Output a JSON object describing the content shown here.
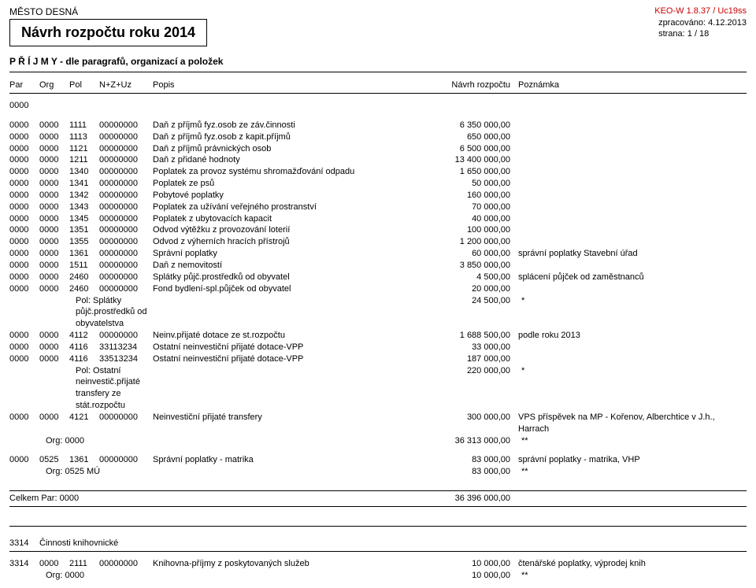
{
  "header": {
    "mesto": "MĚSTO DESNÁ",
    "keo": "KEO-W 1.8.37 / Uc19ss",
    "title": "Návrh rozpočtu roku 2014",
    "zprac_label": "zpracováno:",
    "zprac_value": "4.12.2013",
    "strana_label": "strana:",
    "strana_value": "1 / 18",
    "section": "P Ř Í J M Y - dle paragrafů, organizací a položek"
  },
  "cols": {
    "par": "Par",
    "org": "Org",
    "pol": "Pol",
    "nz": "N+Z+Uz",
    "popis": "Popis",
    "navrh": "Návrh rozpočtu",
    "pozn": "Poznámka"
  },
  "group0_code": "0000",
  "rows": [
    {
      "par": "0000",
      "org": "0000",
      "pol": "1111",
      "nz": "00000000",
      "popis": "Daň z příjmů fyz.osob ze záv.činnosti",
      "navrh": "6 350 000,00",
      "pozn": ""
    },
    {
      "par": "0000",
      "org": "0000",
      "pol": "1113",
      "nz": "00000000",
      "popis": "Daň z příjmů fyz.osob z kapit.příjmů",
      "navrh": "650 000,00",
      "pozn": ""
    },
    {
      "par": "0000",
      "org": "0000",
      "pol": "1121",
      "nz": "00000000",
      "popis": "Daň z příjmů právnických osob",
      "navrh": "6 500 000,00",
      "pozn": ""
    },
    {
      "par": "0000",
      "org": "0000",
      "pol": "1211",
      "nz": "00000000",
      "popis": "Daň z přidané hodnoty",
      "navrh": "13 400 000,00",
      "pozn": ""
    },
    {
      "par": "0000",
      "org": "0000",
      "pol": "1340",
      "nz": "00000000",
      "popis": "Poplatek za provoz systému shromažďování odpadu",
      "navrh": "1 650 000,00",
      "pozn": ""
    },
    {
      "par": "0000",
      "org": "0000",
      "pol": "1341",
      "nz": "00000000",
      "popis": "Poplatek ze psů",
      "navrh": "50 000,00",
      "pozn": ""
    },
    {
      "par": "0000",
      "org": "0000",
      "pol": "1342",
      "nz": "00000000",
      "popis": "Pobytové poplatky",
      "navrh": "160 000,00",
      "pozn": ""
    },
    {
      "par": "0000",
      "org": "0000",
      "pol": "1343",
      "nz": "00000000",
      "popis": "Poplatek za užívání veřejného prostranství",
      "navrh": "70 000,00",
      "pozn": ""
    },
    {
      "par": "0000",
      "org": "0000",
      "pol": "1345",
      "nz": "00000000",
      "popis": "Poplatek z ubytovacích kapacit",
      "navrh": "40 000,00",
      "pozn": ""
    },
    {
      "par": "0000",
      "org": "0000",
      "pol": "1351",
      "nz": "00000000",
      "popis": "Odvod výtěžku z provozování loterií",
      "navrh": "100 000,00",
      "pozn": ""
    },
    {
      "par": "0000",
      "org": "0000",
      "pol": "1355",
      "nz": "00000000",
      "popis": "Odvod z výherních hracích přístrojů",
      "navrh": "1 200 000,00",
      "pozn": ""
    },
    {
      "par": "0000",
      "org": "0000",
      "pol": "1361",
      "nz": "00000000",
      "popis": "Správní poplatky",
      "navrh": "60 000,00",
      "pozn": "správní poplatky Stavební úřad"
    },
    {
      "par": "0000",
      "org": "0000",
      "pol": "1511",
      "nz": "00000000",
      "popis": "Daň z nemovitostí",
      "navrh": "3 850 000,00",
      "pozn": ""
    },
    {
      "par": "0000",
      "org": "0000",
      "pol": "2460",
      "nz": "00000000",
      "popis": "Splátky půjč.prostředků od obyvatel",
      "navrh": "4 500,00",
      "pozn": "splácení půjček od zaměstnanců"
    },
    {
      "par": "0000",
      "org": "0000",
      "pol": "2460",
      "nz": "00000000",
      "popis": "Fond bydlení-spl.půjček od obyvatel",
      "navrh": "20 000,00",
      "pozn": ""
    }
  ],
  "subtotal_pol1": {
    "label": "Pol:",
    "popis": "Splátky půjč.prostředků od obyvatelstva",
    "navrh": "24 500,00",
    "star": "*"
  },
  "rows2": [
    {
      "par": "0000",
      "org": "0000",
      "pol": "4112",
      "nz": "00000000",
      "popis": "Neinv.přijaté dotace ze st.rozpočtu",
      "navrh": "1 688 500,00",
      "pozn": "podle roku 2013"
    },
    {
      "par": "0000",
      "org": "0000",
      "pol": "4116",
      "nz": "33113234",
      "popis": "Ostatní neinvestiční přijaté dotace-VPP",
      "navrh": "33 000,00",
      "pozn": ""
    },
    {
      "par": "0000",
      "org": "0000",
      "pol": "4116",
      "nz": "33513234",
      "popis": "Ostatní neinvestiční přijaté dotace-VPP",
      "navrh": "187 000,00",
      "pozn": ""
    }
  ],
  "subtotal_pol2": {
    "label": "Pol:",
    "popis": "Ostatní neinvestič.přijaté transfery ze stát.rozpočtu",
    "navrh": "220 000,00",
    "star": "*"
  },
  "rows3": [
    {
      "par": "0000",
      "org": "0000",
      "pol": "4121",
      "nz": "00000000",
      "popis": "Neinvestiční přijaté transfery",
      "navrh": "300 000,00",
      "pozn": "VPS příspěvek na MP - Kořenov, Alberchtice v J.h., Harrach"
    }
  ],
  "subtotal_org1": {
    "label": "Org:",
    "popis": "0000",
    "navrh": "36 313 000,00",
    "star": "**"
  },
  "rows4": [
    {
      "par": "0000",
      "org": "0525",
      "pol": "1361",
      "nz": "00000000",
      "popis": "Správní poplatky - matrika",
      "navrh": "83 000,00",
      "pozn": "správní poplatky - matrika, VHP"
    }
  ],
  "subtotal_org2": {
    "label": "Org:",
    "popis": "0525 MÚ",
    "navrh": "83 000,00",
    "star": "**"
  },
  "celkem_par": {
    "label": "Celkem Par:",
    "popis": "0000",
    "navrh": "36 396 000,00"
  },
  "section2": {
    "code": "3314",
    "title": "Činnosti knihovnické"
  },
  "rows5": [
    {
      "par": "3314",
      "org": "0000",
      "pol": "2111",
      "nz": "00000000",
      "popis": "Knihovna-příjmy z poskytovaných služeb",
      "navrh": "10 000,00",
      "pozn": "čtenářské poplatky, výprodej knih"
    }
  ],
  "subtotal_org3": {
    "label": "Org:",
    "popis": "0000",
    "navrh": "10 000,00",
    "star": "**"
  }
}
